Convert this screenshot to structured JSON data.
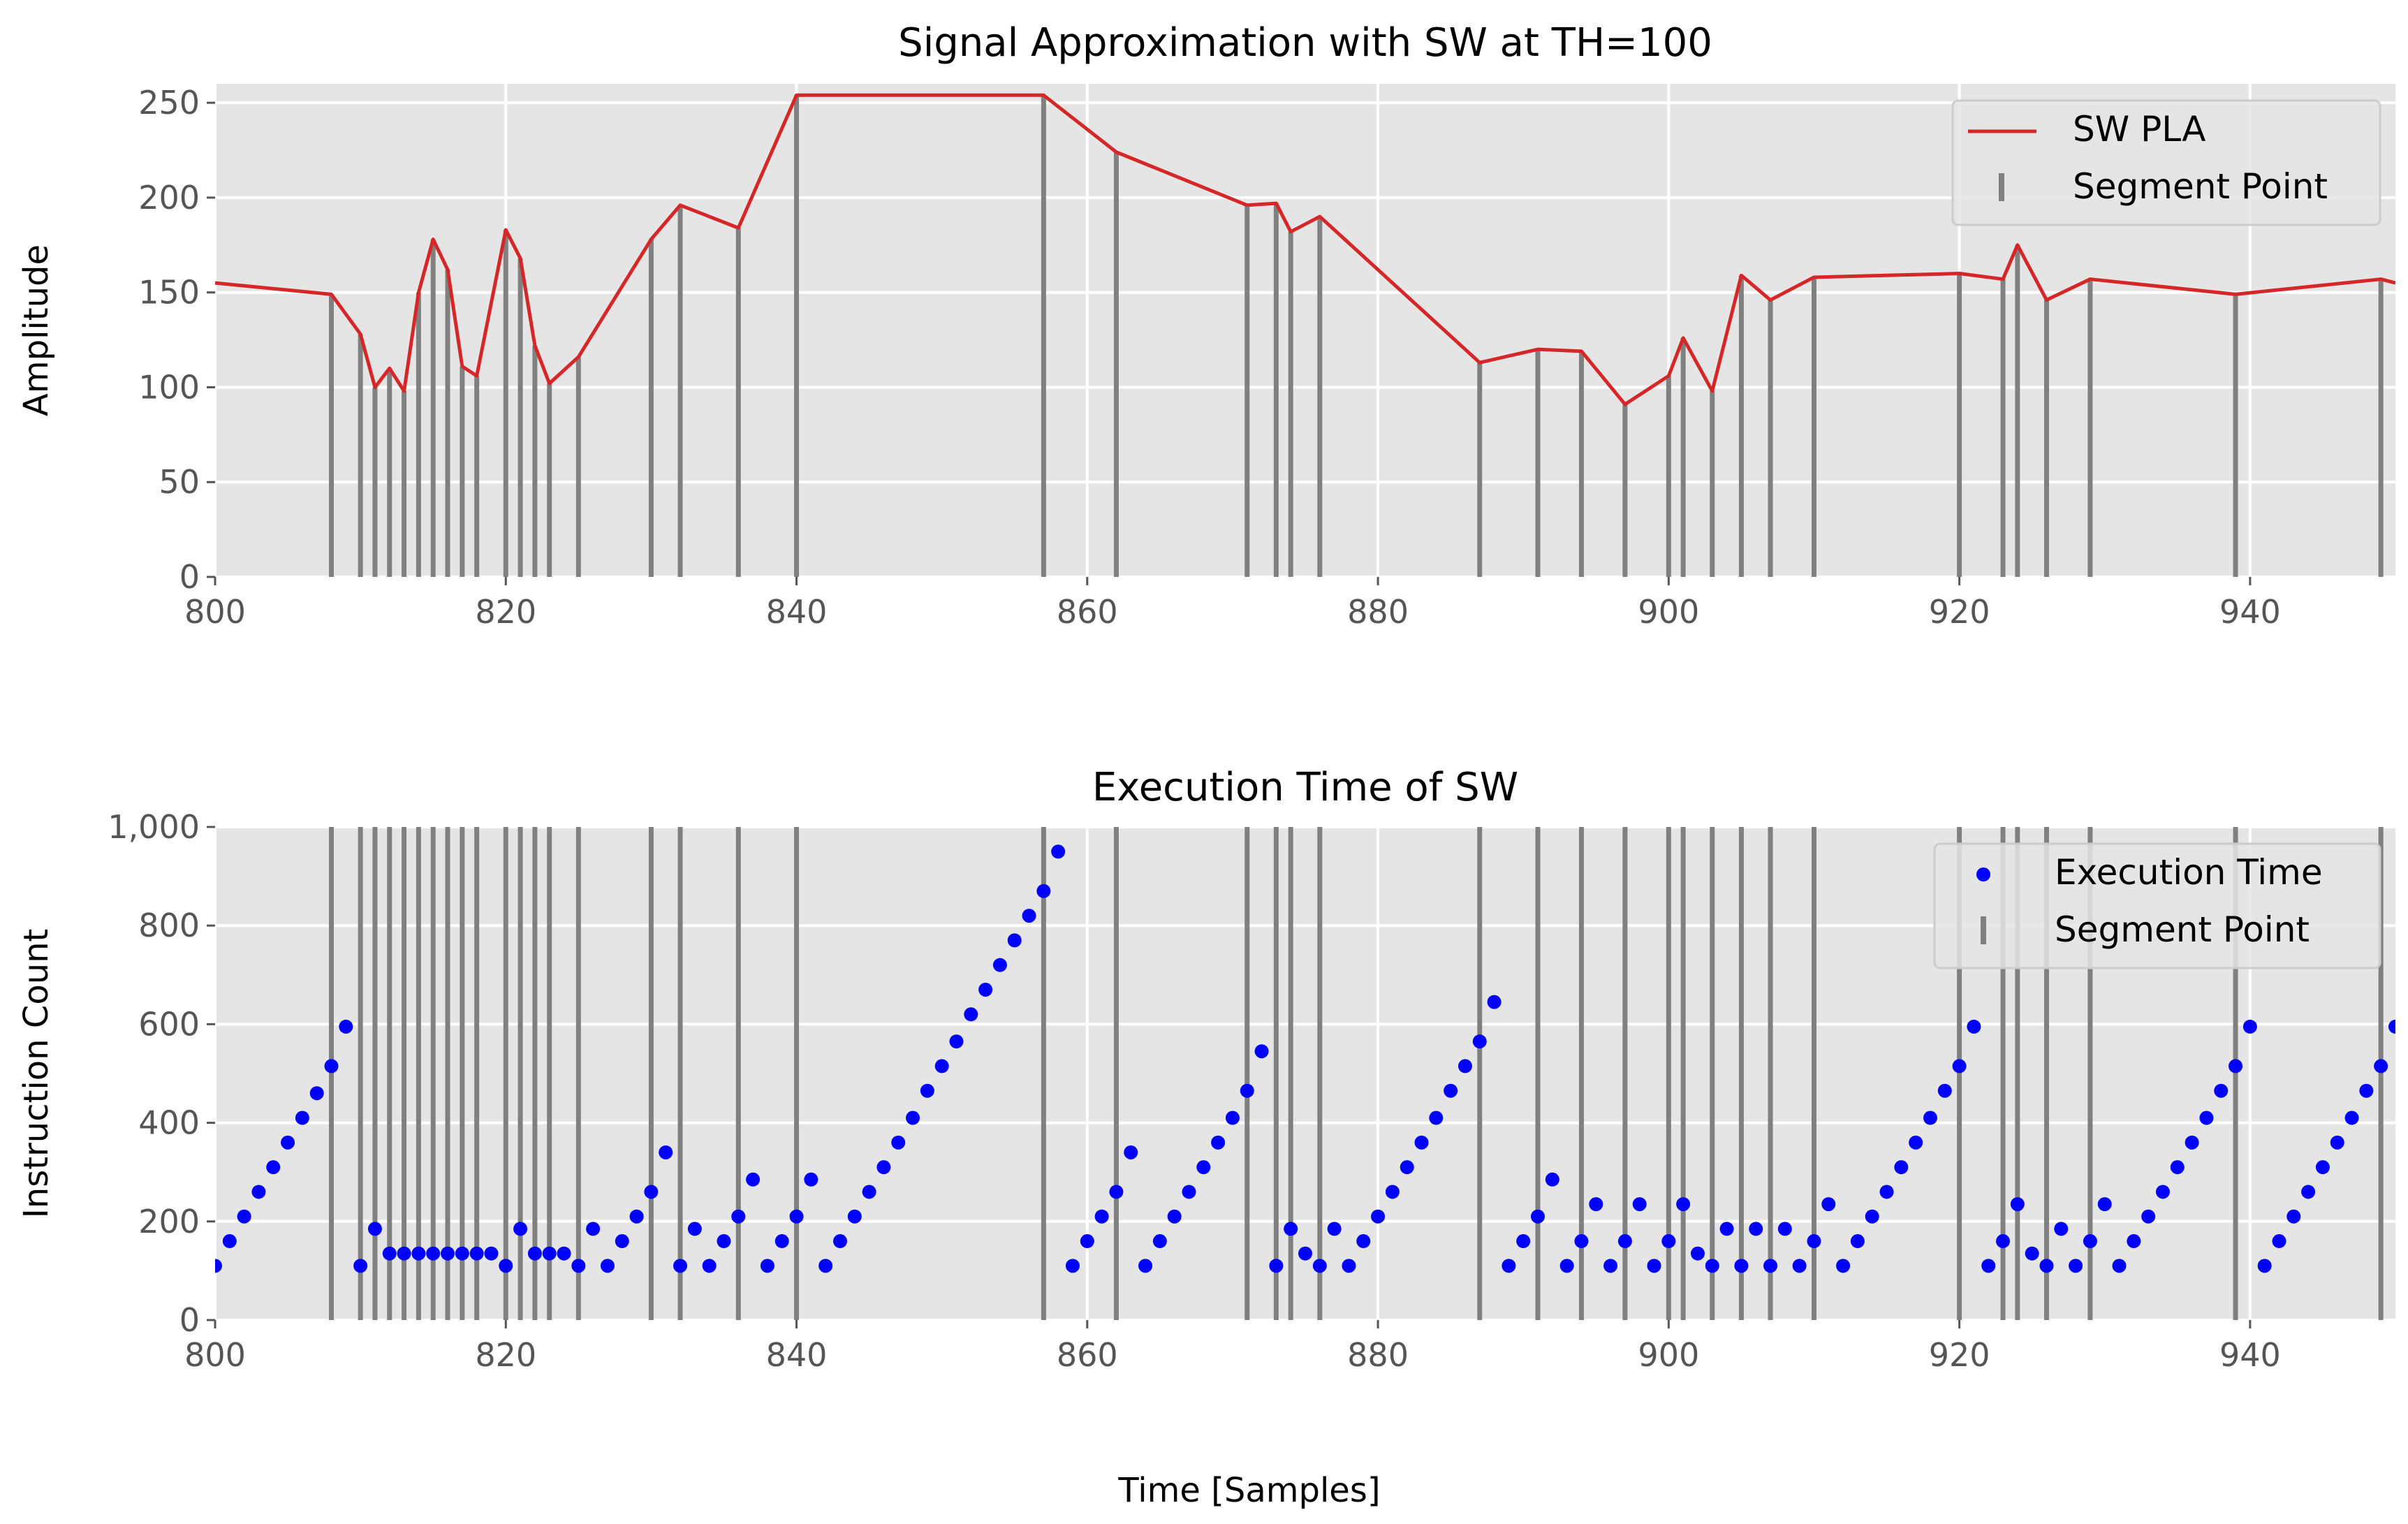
{
  "figure": {
    "xlabel": "Time [Samples]",
    "colors": {
      "background": "#e5e5e5",
      "grid": "#ffffff",
      "pla_line": "#d62728",
      "segment": "#808080",
      "exec_points": "#0000ff"
    }
  },
  "chart_data": [
    {
      "type": "line",
      "title": "Signal Approximation with SW at TH=100",
      "xlabel": "",
      "ylabel": "Amplitude",
      "xlim": [
        800,
        950
      ],
      "ylim": [
        0,
        260
      ],
      "xticks": [
        800,
        820,
        840,
        860,
        880,
        900,
        920,
        940
      ],
      "yticks": [
        0,
        50,
        100,
        150,
        200,
        250
      ],
      "ytick_labels": [
        "0",
        "50",
        "100",
        "150",
        "200",
        "250"
      ],
      "legend": {
        "position": "top-right",
        "entries": [
          "SW PLA",
          "Segment Point"
        ]
      },
      "series": [
        {
          "name": "SW PLA",
          "x": [
            800,
            808,
            810,
            811,
            812,
            813,
            814,
            815,
            816,
            817,
            818,
            820,
            821,
            822,
            823,
            825,
            830,
            832,
            836,
            840,
            857,
            862,
            871,
            873,
            874,
            876,
            887,
            891,
            894,
            897,
            900,
            901,
            903,
            905,
            907,
            910,
            920,
            923,
            924,
            926,
            929,
            939,
            949,
            950
          ],
          "y": [
            155,
            149,
            128,
            100,
            110,
            98,
            150,
            178,
            162,
            111,
            106,
            183,
            168,
            122,
            102,
            116,
            178,
            196,
            184,
            254,
            254,
            224,
            196,
            197,
            182,
            190,
            113,
            120,
            119,
            91,
            106,
            126,
            98,
            159,
            146,
            158,
            160,
            157,
            175,
            146,
            157,
            149,
            157,
            155
          ]
        },
        {
          "name": "Segment Point",
          "x": [
            808,
            810,
            811,
            812,
            813,
            814,
            815,
            816,
            817,
            818,
            820,
            821,
            822,
            823,
            825,
            830,
            832,
            836,
            840,
            857,
            862,
            871,
            873,
            874,
            876,
            887,
            891,
            894,
            897,
            900,
            901,
            903,
            905,
            907,
            910,
            920,
            923,
            924,
            926,
            929,
            939,
            949
          ],
          "y": [
            149,
            128,
            100,
            110,
            98,
            150,
            178,
            162,
            111,
            106,
            183,
            168,
            122,
            102,
            116,
            178,
            196,
            184,
            254,
            254,
            224,
            196,
            197,
            182,
            190,
            113,
            120,
            119,
            91,
            106,
            126,
            98,
            159,
            146,
            158,
            160,
            157,
            175,
            146,
            157,
            149,
            157
          ]
        }
      ]
    },
    {
      "type": "scatter",
      "title": "Execution Time of SW",
      "xlabel": "",
      "ylabel": "Instruction Count",
      "xlim": [
        800,
        950
      ],
      "ylim": [
        0,
        1000
      ],
      "xticks": [
        800,
        820,
        840,
        860,
        880,
        900,
        920,
        940
      ],
      "yticks": [
        0,
        200,
        400,
        600,
        800,
        1000
      ],
      "ytick_labels": [
        "0",
        "200",
        "400",
        "600",
        "800",
        "1,000"
      ],
      "legend": {
        "position": "top-right",
        "entries": [
          "Execution Time",
          "Segment Point"
        ]
      },
      "series": [
        {
          "name": "Execution Time",
          "x": [
            800,
            801,
            802,
            803,
            804,
            805,
            806,
            807,
            808,
            809,
            810,
            811,
            812,
            813,
            814,
            815,
            816,
            817,
            818,
            819,
            820,
            821,
            822,
            823,
            824,
            825,
            826,
            827,
            828,
            829,
            830,
            831,
            832,
            833,
            834,
            835,
            836,
            837,
            838,
            839,
            840,
            841,
            842,
            843,
            844,
            845,
            846,
            847,
            848,
            849,
            850,
            851,
            852,
            853,
            854,
            855,
            856,
            857,
            858,
            859,
            860,
            861,
            862,
            863,
            864,
            865,
            866,
            867,
            868,
            869,
            870,
            871,
            872,
            873,
            874,
            875,
            876,
            877,
            878,
            879,
            880,
            881,
            882,
            883,
            884,
            885,
            886,
            887,
            888,
            889,
            890,
            891,
            892,
            893,
            894,
            895,
            896,
            897,
            898,
            899,
            900,
            901,
            902,
            903,
            904,
            905,
            906,
            907,
            908,
            909,
            910,
            911,
            912,
            913,
            914,
            915,
            916,
            917,
            918,
            919,
            920,
            921,
            922,
            923,
            924,
            925,
            926,
            927,
            928,
            929,
            930,
            931,
            932,
            933,
            934,
            935,
            936,
            937,
            938,
            939,
            940,
            941,
            942,
            943,
            944,
            945,
            946,
            947,
            948,
            949,
            950
          ],
          "y": [
            110,
            160,
            210,
            260,
            310,
            360,
            410,
            460,
            515,
            595,
            110,
            185,
            135,
            135,
            135,
            135,
            135,
            135,
            135,
            135,
            110,
            185,
            135,
            135,
            135,
            110,
            185,
            110,
            160,
            210,
            260,
            340,
            110,
            185,
            110,
            160,
            210,
            285,
            110,
            160,
            210,
            285,
            110,
            160,
            210,
            260,
            310,
            360,
            410,
            465,
            515,
            565,
            620,
            670,
            720,
            770,
            820,
            870,
            950,
            110,
            160,
            210,
            260,
            340,
            110,
            160,
            210,
            260,
            310,
            360,
            410,
            465,
            545,
            110,
            185,
            135,
            110,
            185,
            110,
            160,
            210,
            260,
            310,
            360,
            410,
            465,
            515,
            565,
            645,
            110,
            160,
            210,
            285,
            110,
            160,
            235,
            110,
            160,
            235,
            110,
            160,
            235,
            135,
            110,
            185,
            110,
            185,
            110,
            185,
            110,
            160,
            235,
            110,
            160,
            210,
            260,
            310,
            360,
            410,
            465,
            515,
            595,
            110,
            160,
            235,
            135,
            110,
            185,
            110,
            160,
            235,
            110,
            160,
            210,
            260,
            310,
            360,
            410,
            465,
            515,
            595,
            110,
            160,
            210,
            260,
            310,
            360,
            410,
            465,
            515,
            595
          ]
        },
        {
          "name": "Segment Point",
          "x": [
            808,
            810,
            811,
            812,
            813,
            814,
            815,
            816,
            817,
            818,
            820,
            821,
            822,
            823,
            825,
            830,
            832,
            836,
            840,
            857,
            862,
            871,
            873,
            874,
            876,
            887,
            891,
            894,
            897,
            900,
            901,
            903,
            905,
            907,
            910,
            920,
            923,
            924,
            926,
            929,
            939,
            949
          ]
        }
      ]
    }
  ]
}
